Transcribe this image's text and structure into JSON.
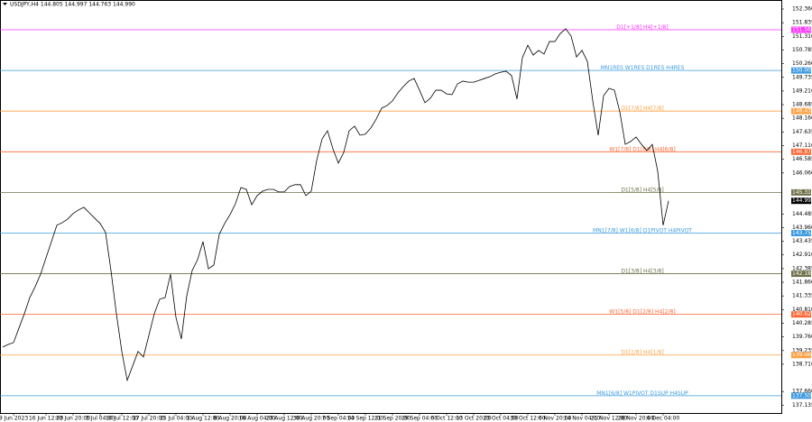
{
  "chart_data": {
    "type": "line",
    "title": "USDJPY,H4 144.805 144.997 144.763 144.990",
    "color": "#000000",
    "categories": [
      null,
      null,
      "9 Jun 2023",
      null,
      null,
      null,
      null,
      null,
      "16 Jun 12:00",
      null,
      null,
      null,
      null,
      "23 Jun 20:00",
      null,
      null,
      null,
      null,
      "3 Jul 04:00",
      null,
      null,
      null,
      "10 Jul 12:00",
      null,
      null,
      null,
      null,
      "17 Jul 20:00",
      null,
      null,
      null,
      null,
      "25 Jul 04:00",
      null,
      null,
      null,
      null,
      "1 Aug 12:00",
      null,
      null,
      null,
      null,
      "8 Aug 20:00",
      null,
      null,
      null,
      null,
      "16 Aug 04:00",
      null,
      null,
      null,
      null,
      "23 Aug 12:00",
      null,
      null,
      null,
      null,
      "30 Aug 20:00",
      null,
      null,
      null,
      null,
      "7 Sep 04:00",
      null,
      null,
      null,
      null,
      "14 Sep 12:00",
      null,
      null,
      null,
      null,
      "21 Sep 20:00",
      null,
      null,
      null,
      null,
      "29 Sep 04:00",
      null,
      null,
      null,
      null,
      "6 Oct 12:00",
      null,
      null,
      null,
      null,
      "13 Oct 20:00",
      null,
      null,
      null,
      null,
      "23 Oct 04:00",
      null,
      null,
      null,
      null,
      "30 Oct 12:00",
      null,
      null,
      null,
      null,
      "6 Nov 20:00",
      null,
      null,
      null,
      null,
      "14 Nov 04:00",
      null,
      null,
      null,
      null,
      "21 Nov 12:00",
      null,
      null,
      null,
      null,
      "28 Nov 20:00",
      null,
      null,
      null,
      null,
      "6 Dec 04:00",
      null
    ],
    "values": [
      139.37,
      139.47,
      139.54,
      140.1,
      140.65,
      141.27,
      141.69,
      142.17,
      142.8,
      143.42,
      144.05,
      144.15,
      144.29,
      144.5,
      144.64,
      144.74,
      144.53,
      144.32,
      144.12,
      143.77,
      142.31,
      140.65,
      139.2,
      138.09,
      138.64,
      139.2,
      138.99,
      139.82,
      140.65,
      141.21,
      141.27,
      142.17,
      140.51,
      139.68,
      141.34,
      142.31,
      142.73,
      143.42,
      142.38,
      142.52,
      143.7,
      144.12,
      144.46,
      144.88,
      145.5,
      145.43,
      144.84,
      145.19,
      145.36,
      145.43,
      145.43,
      145.33,
      145.33,
      145.54,
      145.61,
      145.61,
      145.19,
      145.36,
      146.54,
      147.37,
      147.68,
      146.99,
      146.44,
      146.85,
      147.68,
      147.86,
      147.51,
      147.55,
      147.79,
      148.13,
      148.55,
      148.65,
      148.83,
      149.14,
      149.38,
      149.59,
      149.69,
      149.24,
      148.76,
      148.93,
      149.24,
      149.24,
      149.1,
      149.07,
      149.48,
      149.59,
      149.55,
      149.55,
      149.62,
      149.69,
      149.76,
      149.87,
      149.93,
      149.97,
      149.8,
      148.9,
      150.49,
      150.97,
      150.59,
      150.77,
      150.63,
      151.11,
      151.11,
      151.42,
      151.6,
      151.32,
      150.52,
      150.77,
      150.35,
      148.83,
      147.51,
      149.03,
      149.31,
      149.24,
      148.41,
      147.16,
      147.27,
      147.44,
      147.16,
      146.92,
      147.16,
      146.12,
      144.05,
      144.99
    ],
    "ylim": [
      136.836,
      152.707
    ],
    "yticks": [
      {
        "value": 152.36,
        "label": "152.360"
      },
      {
        "value": 151.835,
        "label": "151.835"
      },
      {
        "value": 151.31,
        "label": "151.310"
      },
      {
        "value": 150.785,
        "label": "150.785"
      },
      {
        "value": 150.26,
        "label": "150.260"
      },
      {
        "value": 149.735,
        "label": "149.735"
      },
      {
        "value": 149.21,
        "label": "149.210"
      },
      {
        "value": 148.685,
        "label": "148.685"
      },
      {
        "value": 148.16,
        "label": "148.160"
      },
      {
        "value": 147.635,
        "label": "147.635"
      },
      {
        "value": 147.11,
        "label": "147.110"
      },
      {
        "value": 146.585,
        "label": "146.585"
      },
      {
        "value": 146.06,
        "label": "146.060"
      },
      {
        "value": 144.485,
        "label": "144.485"
      },
      {
        "value": 143.96,
        "label": "143.960"
      },
      {
        "value": 143.435,
        "label": "143.435"
      },
      {
        "value": 142.91,
        "label": "142.910"
      },
      {
        "value": 142.385,
        "label": "142.385"
      },
      {
        "value": 141.86,
        "label": "141.860"
      },
      {
        "value": 141.335,
        "label": "141.335"
      },
      {
        "value": 140.81,
        "label": "140.810"
      },
      {
        "value": 140.285,
        "label": "140.285"
      },
      {
        "value": 139.76,
        "label": "139.760"
      },
      {
        "value": 139.235,
        "label": "139.235"
      },
      {
        "value": 138.71,
        "label": "138.710"
      },
      {
        "value": 137.66,
        "label": "137.660"
      },
      {
        "value": 137.135,
        "label": "137.135"
      }
    ],
    "levels": [
      {
        "value": 151.563,
        "label": "151.563",
        "name": "D1[+1/8] H4[+1/8]",
        "color": "#ff33ff"
      },
      {
        "value": 150.0,
        "label": "150.000",
        "name": "MN1RES W1RES D1RES H4RES",
        "color": "#3c9be0"
      },
      {
        "value": 148.438,
        "label": "148.438",
        "name": "D1[7/8] H4[7/8]",
        "color": "#ffa040"
      },
      {
        "value": 146.875,
        "label": "146.875",
        "name": "W1[7/8] D1[6/8] H4[6/8]",
        "color": "#ff6633"
      },
      {
        "value": 145.313,
        "label": "145.313",
        "name": "D1[5/8] H4[5/8]",
        "color": "#70704a"
      },
      {
        "value": 143.75,
        "label": "143.750",
        "name": "MN1[7/8] W1[6/8] D1PIVOT H4PIVOT",
        "color": "#3c9be0"
      },
      {
        "value": 142.188,
        "label": "142.188",
        "name": "D1[3/8] H4[3/8]",
        "color": "#70704a"
      },
      {
        "value": 140.625,
        "label": "140.625",
        "name": "W1[5/8] D1[2/8] H4[2/8]",
        "color": "#ff6633"
      },
      {
        "value": 139.063,
        "label": "139.063",
        "name": "D1[1/8] H4[1/8]",
        "color": "#ffa040"
      },
      {
        "value": 137.5,
        "label": "137.500",
        "name": "MN1[6/8] W1PIVOT D1SUP H4SUP",
        "color": "#3c9be0"
      }
    ],
    "last_price": {
      "value": 144.99,
      "label": "144.990"
    }
  }
}
